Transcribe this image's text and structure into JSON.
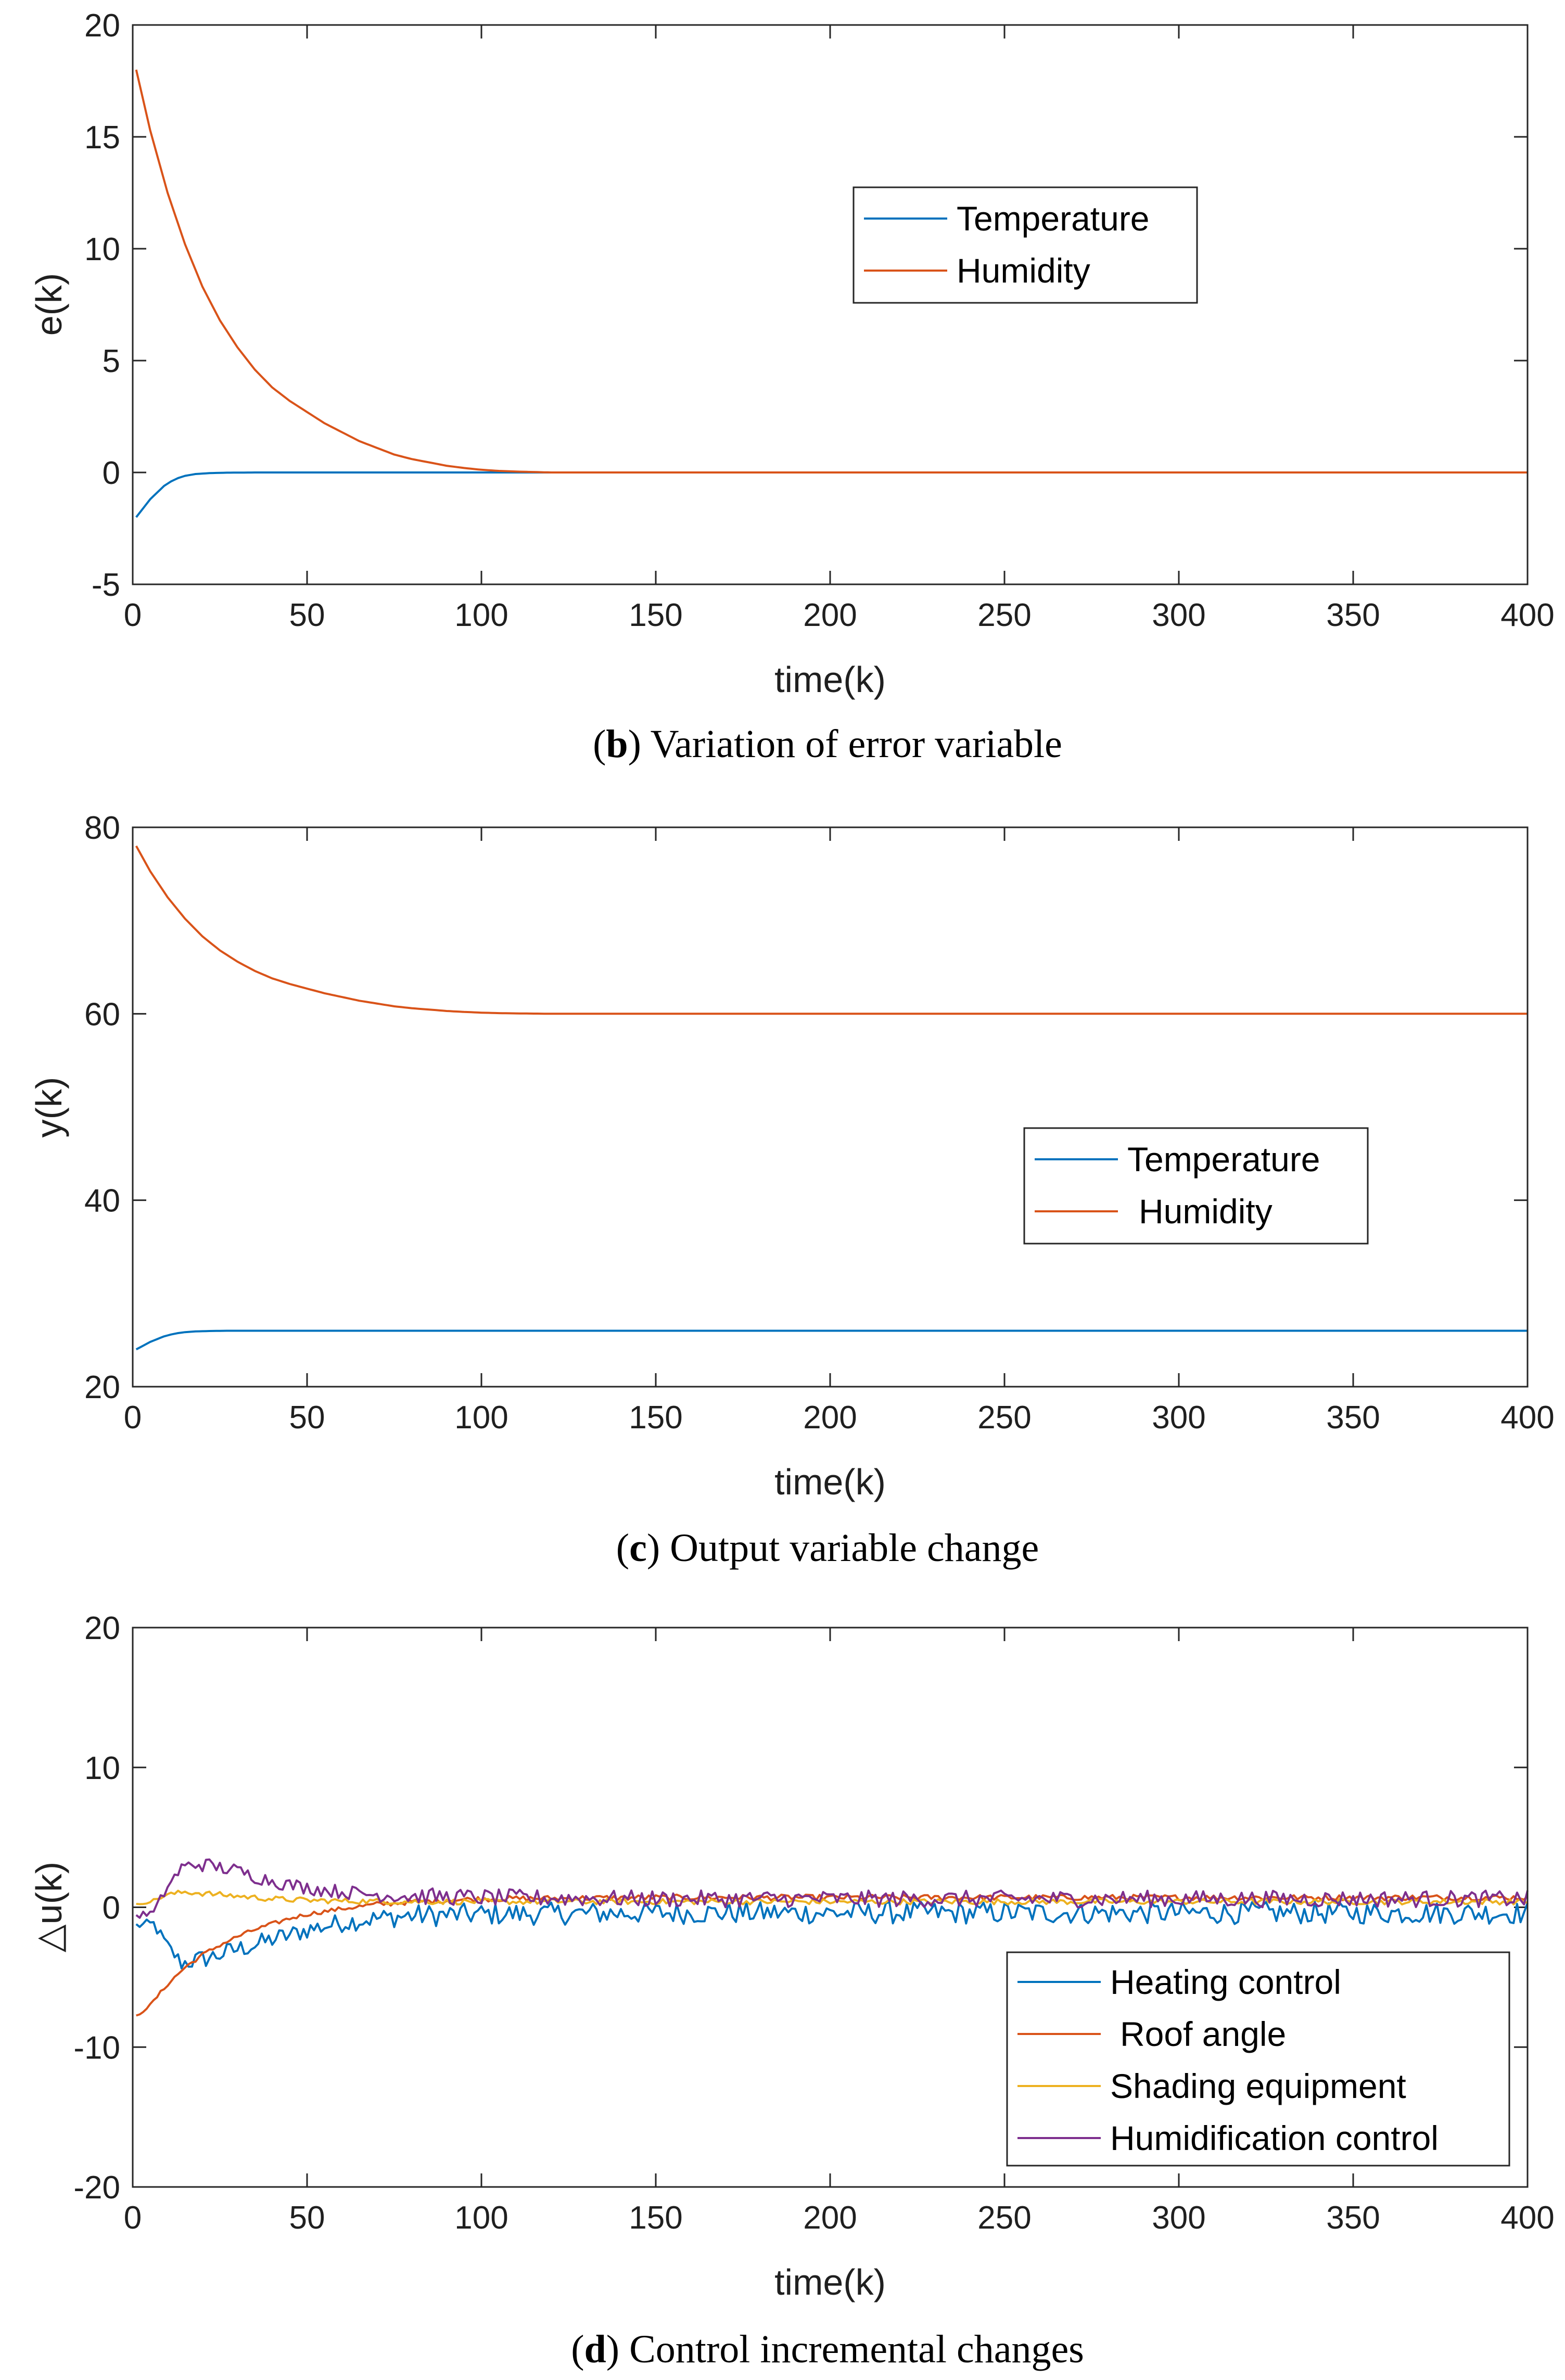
{
  "chart_data": [
    {
      "type": "line",
      "caption": {
        "letter": "b",
        "text": "Variation of error variable"
      },
      "xlabel": "time(k)",
      "ylabel": "e(k)",
      "xlim": [
        0,
        400
      ],
      "ylim": [
        -5,
        20
      ],
      "xticks": [
        0,
        50,
        100,
        150,
        200,
        250,
        300,
        350,
        400
      ],
      "yticks": [
        -5,
        0,
        5,
        10,
        15,
        20
      ],
      "legend_position": "upper-center-right",
      "series": [
        {
          "name": "Temperature",
          "color": "#0072BD",
          "x": [
            1,
            3,
            5,
            7,
            9,
            11,
            13,
            15,
            18,
            22,
            27,
            35,
            50,
            100,
            150,
            200,
            250,
            300,
            350,
            400
          ],
          "y": [
            -2.0,
            -1.6,
            -1.2,
            -0.9,
            -0.6,
            -0.4,
            -0.25,
            -0.15,
            -0.07,
            -0.03,
            -0.01,
            0,
            0,
            0,
            0,
            0,
            0,
            0,
            0,
            0
          ]
        },
        {
          "name": "Humidity",
          "color": "#D95319",
          "x": [
            1,
            5,
            10,
            15,
            20,
            25,
            30,
            35,
            40,
            45,
            50,
            55,
            60,
            65,
            70,
            75,
            80,
            85,
            90,
            95,
            100,
            105,
            110,
            115,
            120,
            150,
            200,
            250,
            300,
            350,
            400
          ],
          "y": [
            18.0,
            15.3,
            12.5,
            10.2,
            8.3,
            6.8,
            5.6,
            4.6,
            3.8,
            3.2,
            2.7,
            2.2,
            1.8,
            1.4,
            1.1,
            0.8,
            0.6,
            0.45,
            0.3,
            0.2,
            0.12,
            0.07,
            0.04,
            0.02,
            0.0,
            0,
            0,
            0,
            0,
            0,
            0
          ]
        }
      ]
    },
    {
      "type": "line",
      "caption": {
        "letter": "c",
        "text": "Output variable change"
      },
      "xlabel": "time(k)",
      "ylabel": "y(k)",
      "xlim": [
        0,
        400
      ],
      "ylim": [
        20,
        80
      ],
      "xticks": [
        0,
        50,
        100,
        150,
        200,
        250,
        300,
        350,
        400
      ],
      "yticks": [
        20,
        40,
        60,
        80
      ],
      "legend_position": "center-right",
      "series": [
        {
          "name": "Temperature",
          "color": "#0072BD",
          "x": [
            1,
            3,
            5,
            7,
            9,
            11,
            13,
            15,
            18,
            22,
            27,
            35,
            50,
            100,
            150,
            200,
            250,
            300,
            350,
            400
          ],
          "y": [
            24.0,
            24.4,
            24.8,
            25.1,
            25.4,
            25.6,
            25.75,
            25.85,
            25.93,
            25.97,
            26.0,
            26.0,
            26.0,
            26.0,
            26.0,
            26.0,
            26.0,
            26.0,
            26.0,
            26.0
          ]
        },
        {
          "name": "Humidity",
          "color": "#D95319",
          "x": [
            1,
            5,
            10,
            15,
            20,
            25,
            30,
            35,
            40,
            45,
            50,
            55,
            60,
            65,
            70,
            75,
            80,
            85,
            90,
            95,
            100,
            105,
            110,
            115,
            120,
            150,
            200,
            250,
            300,
            350,
            400
          ],
          "y": [
            78.0,
            75.3,
            72.5,
            70.2,
            68.3,
            66.8,
            65.6,
            64.6,
            63.8,
            63.2,
            62.7,
            62.2,
            61.8,
            61.4,
            61.1,
            60.8,
            60.6,
            60.45,
            60.3,
            60.2,
            60.12,
            60.07,
            60.04,
            60.02,
            60.0,
            60,
            60,
            60,
            60,
            60,
            60
          ]
        }
      ]
    },
    {
      "type": "line",
      "caption": {
        "letter": "d",
        "text": "Control incremental changes"
      },
      "xlabel": "time(k)",
      "ylabel": "△u(k)",
      "xlim": [
        0,
        400
      ],
      "ylim": [
        -20,
        20
      ],
      "xticks": [
        0,
        50,
        100,
        150,
        200,
        250,
        300,
        350,
        400
      ],
      "yticks": [
        -20,
        -10,
        0,
        10,
        20
      ],
      "legend_position": "bottom-right",
      "series": [
        {
          "name": "Heating control",
          "color": "#0072BD",
          "x": [
            1,
            6,
            10,
            14,
            18,
            22,
            26,
            30,
            35,
            40,
            45,
            50,
            60,
            70,
            80,
            100,
            150,
            200,
            250,
            300,
            350,
            400
          ],
          "y": [
            -1.3,
            -1.2,
            -2.8,
            -4.0,
            -3.8,
            -3.6,
            -3.3,
            -3.0,
            -2.7,
            -2.3,
            -2.0,
            -1.6,
            -1.1,
            -0.8,
            -0.6,
            -0.5,
            -0.4,
            -0.4,
            -0.4,
            -0.4,
            -0.4,
            -0.4
          ],
          "noise": [
            0.3,
            0.4,
            0.5,
            0.6,
            0.7,
            0.7,
            0.7,
            0.7,
            0.7,
            0.7,
            0.7,
            0.7,
            0.7,
            0.7,
            0.8,
            0.8,
            0.8,
            0.8,
            0.8,
            0.8,
            0.8,
            0.8
          ]
        },
        {
          "name": "Roof angle",
          "color": "#D95319",
          "x": [
            1,
            5,
            10,
            15,
            20,
            25,
            30,
            35,
            40,
            45,
            50,
            60,
            70,
            80,
            90,
            100,
            150,
            200,
            250,
            300,
            350,
            400
          ],
          "y": [
            -7.8,
            -7.0,
            -5.5,
            -4.3,
            -3.4,
            -2.7,
            -2.1,
            -1.6,
            -1.2,
            -0.8,
            -0.5,
            -0.1,
            0.2,
            0.4,
            0.5,
            0.6,
            0.7,
            0.7,
            0.7,
            0.7,
            0.7,
            0.7
          ],
          "noise": [
            0.1,
            0.1,
            0.15,
            0.15,
            0.15,
            0.15,
            0.15,
            0.15,
            0.15,
            0.15,
            0.15,
            0.15,
            0.2,
            0.2,
            0.2,
            0.2,
            0.2,
            0.2,
            0.2,
            0.2,
            0.2,
            0.2
          ]
        },
        {
          "name": "Shading equipment",
          "color": "#EDB120",
          "x": [
            1,
            5,
            10,
            15,
            20,
            25,
            30,
            35,
            40,
            50,
            60,
            80,
            100,
            150,
            200,
            250,
            300,
            350,
            400
          ],
          "y": [
            0.2,
            0.4,
            0.9,
            1.1,
            1.0,
            0.9,
            0.8,
            0.7,
            0.6,
            0.5,
            0.45,
            0.4,
            0.4,
            0.4,
            0.4,
            0.4,
            0.4,
            0.4,
            0.4
          ],
          "noise": [
            0.05,
            0.1,
            0.15,
            0.2,
            0.2,
            0.2,
            0.2,
            0.2,
            0.2,
            0.2,
            0.2,
            0.2,
            0.2,
            0.2,
            0.2,
            0.2,
            0.2,
            0.2,
            0.2
          ]
        },
        {
          "name": "Humidification control",
          "color": "#7E2F8E",
          "x": [
            1,
            6,
            10,
            14,
            18,
            22,
            26,
            30,
            35,
            40,
            45,
            50,
            60,
            70,
            80,
            100,
            150,
            200,
            250,
            300,
            350,
            400
          ],
          "y": [
            -0.6,
            -0.4,
            1.5,
            2.8,
            3.1,
            3.0,
            2.8,
            2.6,
            2.2,
            1.9,
            1.6,
            1.4,
            1.1,
            0.9,
            0.8,
            0.7,
            0.6,
            0.6,
            0.6,
            0.6,
            0.6,
            0.6
          ],
          "noise": [
            0.2,
            0.3,
            0.4,
            0.5,
            0.5,
            0.5,
            0.5,
            0.5,
            0.5,
            0.5,
            0.5,
            0.5,
            0.5,
            0.5,
            0.6,
            0.6,
            0.6,
            0.6,
            0.6,
            0.6,
            0.6,
            0.6
          ]
        }
      ]
    }
  ]
}
